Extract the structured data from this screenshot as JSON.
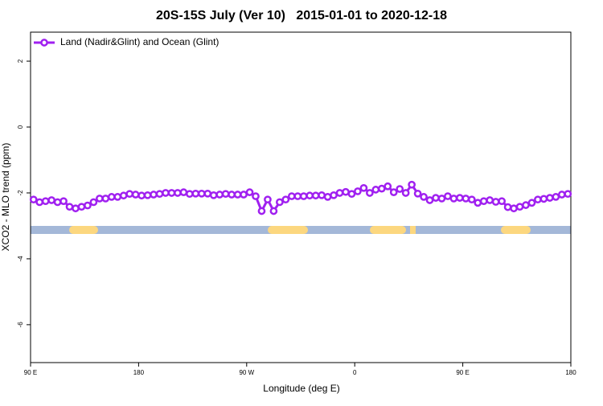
{
  "chart_data": {
    "type": "line",
    "title": "20S-15S July (Ver 10)   2015-01-01 to 2020-12-18",
    "x_label": "Longitude (deg E)",
    "y_label": "XCO2 - MLO trend (ppm)",
    "x": [
      92.5,
      97.5,
      102.5,
      107.5,
      112.5,
      117.5,
      122.5,
      127.5,
      132.5,
      137.5,
      142.5,
      147.5,
      152.5,
      157.5,
      162.5,
      167.5,
      172.5,
      177.5,
      182.5,
      187.5,
      192.5,
      197.5,
      202.5,
      207.5,
      212.5,
      217.5,
      222.5,
      227.5,
      232.5,
      237.5,
      242.5,
      247.5,
      252.5,
      257.5,
      262.5,
      267.5,
      272.5,
      277.5,
      282.5,
      287.5,
      292.5,
      297.5,
      302.5,
      307.5,
      312.5,
      317.5,
      322.5,
      327.5,
      332.5,
      337.5,
      342.5,
      347.5,
      352.5,
      357.5,
      362.5,
      367.5,
      372.5,
      377.5,
      382.5,
      387.5,
      392.5,
      397.5,
      402.5,
      407.5,
      412.5,
      417.5,
      422.5,
      427.5,
      432.5,
      437.5,
      442.5,
      447.5,
      452.5,
      457.5,
      462.5,
      467.5,
      472.5,
      477.5,
      482.5,
      487.5,
      492.5,
      497.5,
      502.5,
      507.5,
      512.5,
      517.5,
      522.5,
      527.5,
      532.5,
      537.5
    ],
    "series": [
      {
        "name": "Land (Nadir&Glint) and Ocean (Glint)",
        "color": "#a020f0",
        "values": [
          -2.2,
          -2.28,
          -2.25,
          -2.22,
          -2.28,
          -2.25,
          -2.42,
          -2.47,
          -2.42,
          -2.38,
          -2.28,
          -2.17,
          -2.17,
          -2.12,
          -2.12,
          -2.08,
          -2.03,
          -2.05,
          -2.08,
          -2.07,
          -2.05,
          -2.03,
          -2.0,
          -2.0,
          -2.0,
          -1.98,
          -2.03,
          -2.02,
          -2.02,
          -2.02,
          -2.07,
          -2.05,
          -2.03,
          -2.05,
          -2.05,
          -2.05,
          -1.98,
          -2.1,
          -2.55,
          -2.2,
          -2.55,
          -2.28,
          -2.2,
          -2.1,
          -2.1,
          -2.1,
          -2.08,
          -2.08,
          -2.07,
          -2.12,
          -2.07,
          -2.0,
          -1.97,
          -2.03,
          -1.95,
          -1.85,
          -2.0,
          -1.9,
          -1.87,
          -1.8,
          -1.98,
          -1.88,
          -2.0,
          -1.75,
          -2.02,
          -2.12,
          -2.22,
          -2.15,
          -2.17,
          -2.1,
          -2.17,
          -2.15,
          -2.17,
          -2.2,
          -2.3,
          -2.25,
          -2.22,
          -2.27,
          -2.25,
          -2.43,
          -2.47,
          -2.42,
          -2.37,
          -2.3,
          -2.2,
          -2.18,
          -2.15,
          -2.12,
          -2.05,
          -2.03
        ]
      }
    ],
    "xlim": [
      90,
      540
    ],
    "xticks": [
      {
        "value": 90,
        "label": "90 E"
      },
      {
        "value": 180,
        "label": "180"
      },
      {
        "value": 270,
        "label": "90 W"
      },
      {
        "value": 360,
        "label": "0"
      },
      {
        "value": 450,
        "label": "90 E"
      },
      {
        "value": 540,
        "label": "180"
      }
    ],
    "ylim": [
      -7.15,
      2.88
    ],
    "yticks": [
      2,
      0,
      -2,
      -4,
      -6
    ],
    "legend": "top-left"
  }
}
